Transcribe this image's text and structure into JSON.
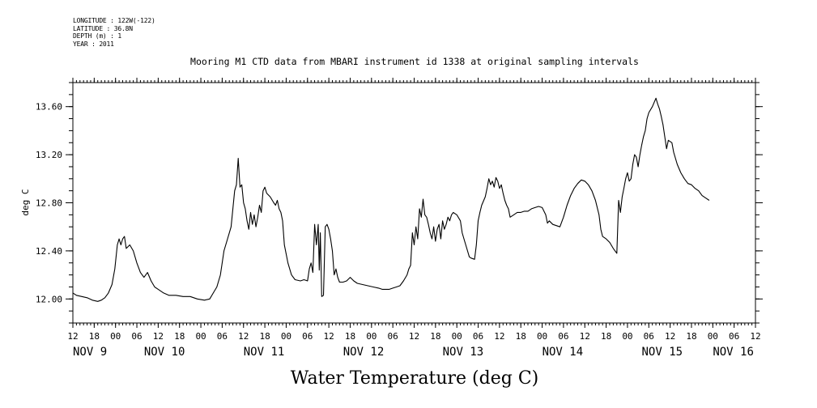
{
  "header": {
    "longitude": "LONGITUDE : 122W(-122)",
    "latitude": "LATITUDE : 36.8N",
    "depth": "DEPTH (m) : 1",
    "year": "YEAR : 2011"
  },
  "chart_data": {
    "type": "line",
    "title": "Mooring M1 CTD data from MBARI instrument id 1338 at original sampling intervals",
    "ylabel": "deg C",
    "xlabel": "Water Temperature (deg C)",
    "ylim": [
      11.8,
      13.8
    ],
    "yticks": [
      12.0,
      12.4,
      12.8,
      13.2,
      13.6
    ],
    "ytick_labels": [
      "12.00",
      "12.40",
      "12.80",
      "13.20",
      "13.60"
    ],
    "xlim": [
      -12,
      180
    ],
    "x_unit": "hours since 00:00 on NOV 9",
    "hour_ticks": [
      -12,
      -6,
      0,
      6,
      12,
      18,
      24,
      30,
      36,
      42,
      48,
      54,
      60,
      66,
      72,
      78,
      84,
      90,
      96,
      102,
      108,
      114,
      120,
      126,
      132,
      138,
      144,
      150,
      156,
      162,
      168,
      174,
      180
    ],
    "hour_tick_labels": [
      "12",
      "18",
      "00",
      "06",
      "12",
      "18",
      "00",
      "06",
      "12",
      "18",
      "00",
      "06",
      "12",
      "18",
      "00",
      "06",
      "12",
      "18",
      "00",
      "06",
      "12",
      "18",
      "00",
      "06",
      "12",
      "18",
      "00",
      "06",
      "12",
      "18",
      "00",
      "06",
      "12"
    ],
    "day_labels": [
      {
        "x": -12,
        "label": "NOV  9"
      },
      {
        "x": 8,
        "label": "NOV 10"
      },
      {
        "x": 36,
        "label": "NOV 11"
      },
      {
        "x": 64,
        "label": "NOV 12"
      },
      {
        "x": 92,
        "label": "NOV 13"
      },
      {
        "x": 120,
        "label": "NOV 14"
      },
      {
        "x": 148,
        "label": "NOV 15"
      },
      {
        "x": 168,
        "label": "NOV 16"
      }
    ],
    "series": [
      {
        "points": [
          [
            -12.0,
            12.05
          ],
          [
            -11.0,
            12.03
          ],
          [
            -9.5,
            12.02
          ],
          [
            -8.0,
            12.01
          ],
          [
            -6.5,
            11.99
          ],
          [
            -5.0,
            11.98
          ],
          [
            -4.0,
            11.99
          ],
          [
            -3.0,
            12.01
          ],
          [
            -2.0,
            12.05
          ],
          [
            -1.0,
            12.12
          ],
          [
            -0.2,
            12.25
          ],
          [
            0.5,
            12.45
          ],
          [
            1.0,
            12.5
          ],
          [
            1.5,
            12.45
          ],
          [
            2.0,
            12.5
          ],
          [
            2.5,
            12.52
          ],
          [
            3.0,
            12.42
          ],
          [
            4.0,
            12.45
          ],
          [
            5.0,
            12.4
          ],
          [
            6.0,
            12.3
          ],
          [
            7.0,
            12.22
          ],
          [
            8.0,
            12.18
          ],
          [
            9.0,
            12.22
          ],
          [
            10.0,
            12.15
          ],
          [
            11.0,
            12.1
          ],
          [
            12.0,
            12.08
          ],
          [
            13.5,
            12.05
          ],
          [
            15.0,
            12.03
          ],
          [
            17.0,
            12.03
          ],
          [
            19.0,
            12.02
          ],
          [
            21.0,
            12.02
          ],
          [
            23.0,
            12.0
          ],
          [
            25.0,
            11.99
          ],
          [
            26.5,
            12.0
          ],
          [
            27.5,
            12.05
          ],
          [
            28.5,
            12.1
          ],
          [
            29.5,
            12.2
          ],
          [
            30.5,
            12.4
          ],
          [
            31.5,
            12.5
          ],
          [
            32.5,
            12.6
          ],
          [
            33.0,
            12.75
          ],
          [
            33.5,
            12.9
          ],
          [
            34.0,
            12.95
          ],
          [
            34.5,
            13.17
          ],
          [
            35.0,
            12.93
          ],
          [
            35.5,
            12.95
          ],
          [
            36.0,
            12.8
          ],
          [
            36.5,
            12.75
          ],
          [
            37.0,
            12.65
          ],
          [
            37.5,
            12.58
          ],
          [
            38.0,
            12.72
          ],
          [
            38.5,
            12.62
          ],
          [
            39.0,
            12.7
          ],
          [
            39.5,
            12.6
          ],
          [
            40.0,
            12.68
          ],
          [
            40.5,
            12.78
          ],
          [
            41.0,
            12.72
          ],
          [
            41.5,
            12.9
          ],
          [
            42.0,
            12.93
          ],
          [
            42.5,
            12.88
          ],
          [
            43.5,
            12.85
          ],
          [
            44.5,
            12.8
          ],
          [
            45.0,
            12.78
          ],
          [
            45.5,
            12.82
          ],
          [
            46.0,
            12.75
          ],
          [
            46.5,
            12.72
          ],
          [
            47.0,
            12.65
          ],
          [
            47.5,
            12.45
          ],
          [
            48.5,
            12.3
          ],
          [
            49.5,
            12.2
          ],
          [
            50.5,
            12.16
          ],
          [
            52.0,
            12.15
          ],
          [
            53.0,
            12.16
          ],
          [
            54.0,
            12.15
          ],
          [
            54.5,
            12.25
          ],
          [
            55.0,
            12.3
          ],
          [
            55.5,
            12.22
          ],
          [
            56.0,
            12.62
          ],
          [
            56.5,
            12.45
          ],
          [
            57.0,
            12.62
          ],
          [
            57.3,
            12.24
          ],
          [
            57.6,
            12.55
          ],
          [
            58.0,
            12.02
          ],
          [
            58.5,
            12.03
          ],
          [
            59.0,
            12.6
          ],
          [
            59.5,
            12.62
          ],
          [
            60.0,
            12.58
          ],
          [
            60.5,
            12.5
          ],
          [
            61.0,
            12.4
          ],
          [
            61.5,
            12.2
          ],
          [
            62.0,
            12.25
          ],
          [
            62.5,
            12.18
          ],
          [
            63.0,
            12.14
          ],
          [
            64.0,
            12.14
          ],
          [
            65.0,
            12.15
          ],
          [
            66.0,
            12.18
          ],
          [
            67.0,
            12.15
          ],
          [
            68.0,
            12.13
          ],
          [
            69.5,
            12.12
          ],
          [
            71.0,
            12.11
          ],
          [
            72.5,
            12.1
          ],
          [
            74.0,
            12.09
          ],
          [
            75.0,
            12.08
          ],
          [
            76.0,
            12.08
          ],
          [
            77.0,
            12.08
          ],
          [
            78.0,
            12.09
          ],
          [
            79.0,
            12.1
          ],
          [
            80.0,
            12.11
          ],
          [
            81.0,
            12.15
          ],
          [
            82.0,
            12.2
          ],
          [
            82.5,
            12.25
          ],
          [
            83.0,
            12.28
          ],
          [
            83.5,
            12.55
          ],
          [
            84.0,
            12.45
          ],
          [
            84.5,
            12.6
          ],
          [
            85.0,
            12.5
          ],
          [
            85.5,
            12.75
          ],
          [
            86.0,
            12.68
          ],
          [
            86.5,
            12.83
          ],
          [
            87.0,
            12.7
          ],
          [
            87.5,
            12.68
          ],
          [
            88.0,
            12.62
          ],
          [
            88.5,
            12.55
          ],
          [
            89.0,
            12.5
          ],
          [
            89.5,
            12.6
          ],
          [
            90.0,
            12.48
          ],
          [
            90.5,
            12.58
          ],
          [
            91.0,
            12.62
          ],
          [
            91.5,
            12.5
          ],
          [
            92.0,
            12.65
          ],
          [
            92.5,
            12.58
          ],
          [
            93.0,
            12.62
          ],
          [
            93.5,
            12.68
          ],
          [
            94.0,
            12.65
          ],
          [
            94.5,
            12.7
          ],
          [
            95.0,
            12.72
          ],
          [
            96.0,
            12.7
          ],
          [
            97.0,
            12.65
          ],
          [
            97.5,
            12.55
          ],
          [
            98.0,
            12.5
          ],
          [
            98.5,
            12.45
          ],
          [
            99.0,
            12.4
          ],
          [
            99.5,
            12.35
          ],
          [
            100.0,
            12.34
          ],
          [
            101.0,
            12.33
          ],
          [
            101.5,
            12.45
          ],
          [
            102.0,
            12.65
          ],
          [
            102.5,
            12.72
          ],
          [
            103.0,
            12.78
          ],
          [
            104.0,
            12.85
          ],
          [
            104.5,
            12.92
          ],
          [
            105.0,
            13.0
          ],
          [
            105.5,
            12.95
          ],
          [
            106.0,
            12.98
          ],
          [
            106.5,
            12.93
          ],
          [
            107.0,
            13.01
          ],
          [
            107.5,
            12.98
          ],
          [
            108.0,
            12.92
          ],
          [
            108.5,
            12.95
          ],
          [
            109.0,
            12.88
          ],
          [
            109.5,
            12.82
          ],
          [
            110.0,
            12.78
          ],
          [
            110.5,
            12.75
          ],
          [
            111.0,
            12.68
          ],
          [
            112.0,
            12.7
          ],
          [
            113.0,
            12.72
          ],
          [
            114.0,
            12.72
          ],
          [
            115.0,
            12.73
          ],
          [
            116.0,
            12.73
          ],
          [
            117.0,
            12.75
          ],
          [
            118.0,
            12.76
          ],
          [
            119.0,
            12.77
          ],
          [
            120.0,
            12.76
          ],
          [
            120.5,
            12.73
          ],
          [
            121.0,
            12.7
          ],
          [
            121.5,
            12.63
          ],
          [
            122.0,
            12.65
          ],
          [
            123.0,
            12.62
          ],
          [
            124.0,
            12.61
          ],
          [
            125.0,
            12.6
          ],
          [
            126.0,
            12.68
          ],
          [
            127.0,
            12.78
          ],
          [
            128.0,
            12.86
          ],
          [
            129.0,
            12.92
          ],
          [
            130.0,
            12.96
          ],
          [
            131.0,
            12.99
          ],
          [
            132.0,
            12.98
          ],
          [
            133.0,
            12.95
          ],
          [
            134.0,
            12.9
          ],
          [
            135.0,
            12.82
          ],
          [
            136.0,
            12.7
          ],
          [
            136.5,
            12.58
          ],
          [
            137.0,
            12.52
          ],
          [
            138.0,
            12.5
          ],
          [
            139.0,
            12.47
          ],
          [
            140.0,
            12.42
          ],
          [
            140.5,
            12.4
          ],
          [
            141.0,
            12.38
          ],
          [
            141.5,
            12.82
          ],
          [
            142.0,
            12.72
          ],
          [
            142.5,
            12.85
          ],
          [
            143.0,
            12.92
          ],
          [
            143.5,
            13.0
          ],
          [
            144.0,
            13.05
          ],
          [
            144.5,
            12.98
          ],
          [
            145.0,
            13.0
          ],
          [
            145.5,
            13.12
          ],
          [
            146.0,
            13.2
          ],
          [
            146.5,
            13.18
          ],
          [
            147.0,
            13.1
          ],
          [
            147.5,
            13.2
          ],
          [
            148.0,
            13.28
          ],
          [
            148.5,
            13.35
          ],
          [
            149.0,
            13.4
          ],
          [
            149.5,
            13.5
          ],
          [
            150.0,
            13.55
          ],
          [
            151.0,
            13.6
          ],
          [
            152.0,
            13.67
          ],
          [
            152.5,
            13.62
          ],
          [
            153.0,
            13.58
          ],
          [
            153.5,
            13.52
          ],
          [
            154.0,
            13.45
          ],
          [
            154.5,
            13.35
          ],
          [
            155.0,
            13.25
          ],
          [
            155.5,
            13.32
          ],
          [
            156.5,
            13.3
          ],
          [
            157.0,
            13.22
          ],
          [
            158.0,
            13.12
          ],
          [
            159.0,
            13.05
          ],
          [
            160.0,
            13.0
          ],
          [
            161.0,
            12.96
          ],
          [
            162.0,
            12.95
          ],
          [
            163.0,
            12.92
          ],
          [
            164.0,
            12.9
          ],
          [
            165.0,
            12.86
          ],
          [
            166.0,
            12.84
          ],
          [
            167.0,
            12.82
          ]
        ]
      }
    ]
  }
}
